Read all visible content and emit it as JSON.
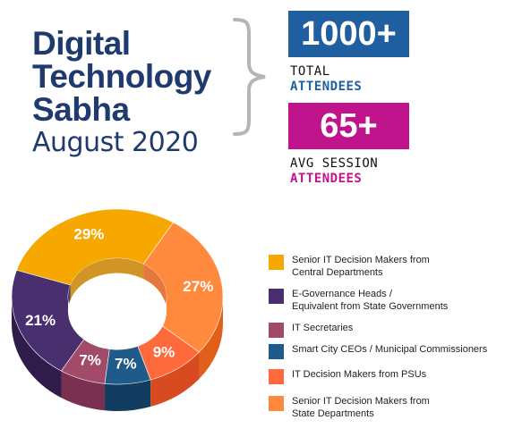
{
  "title": {
    "line1": "Digital",
    "line2": "Technology",
    "line3": "Sabha",
    "date": "August 2020"
  },
  "stats": [
    {
      "value": "1000+",
      "label_line1": "TOTAL",
      "label_line2": "ATTENDEES",
      "color": "#1f5fa0"
    },
    {
      "value": "65+",
      "label_line1": "AVG SESSION",
      "label_line2": "ATTENDEES",
      "color": "#c0148c"
    }
  ],
  "colors": {
    "title": "#1f3a6e",
    "brace": "#b5b5b5"
  },
  "chart_data": {
    "type": "pie",
    "variant": "3d-donut",
    "categories": [
      "Senior IT Decision Makers from Central Departments",
      "E-Governance Heads / Equivalent from State Governments",
      "IT Secretaries",
      "Smart City CEOs / Municipal Commissioners",
      "IT Decision Makers from PSUs",
      "Senior IT Decision Makers from State Departments"
    ],
    "values": [
      29,
      21,
      7,
      7,
      9,
      27
    ],
    "value_labels": [
      "29%",
      "21%",
      "7%",
      "7%",
      "9%",
      "27%"
    ],
    "colors": [
      "#f7a800",
      "#4a2f6e",
      "#a24a6a",
      "#1e5a8a",
      "#ff6a3d",
      "#ff8a3d"
    ],
    "side_colors": [
      "#c98200",
      "#2f1c4a",
      "#7a3050",
      "#123d60",
      "#d84a20",
      "#e0601a"
    ],
    "legend_position": "right"
  },
  "legend": {
    "items": [
      {
        "line1": "Senior IT Decision Makers from",
        "line2": "Central Departments"
      },
      {
        "line1": "E-Governance Heads /",
        "line2": "Equivalent from State Governments"
      },
      {
        "line1": "IT Secretaries",
        "line2": ""
      },
      {
        "line1": "Smart City CEOs / Municipal Commissioners",
        "line2": ""
      },
      {
        "line1": "IT Decision Makers from PSUs",
        "line2": ""
      },
      {
        "line1": "Senior IT Decision Makers from",
        "line2": "State Departments"
      }
    ]
  }
}
